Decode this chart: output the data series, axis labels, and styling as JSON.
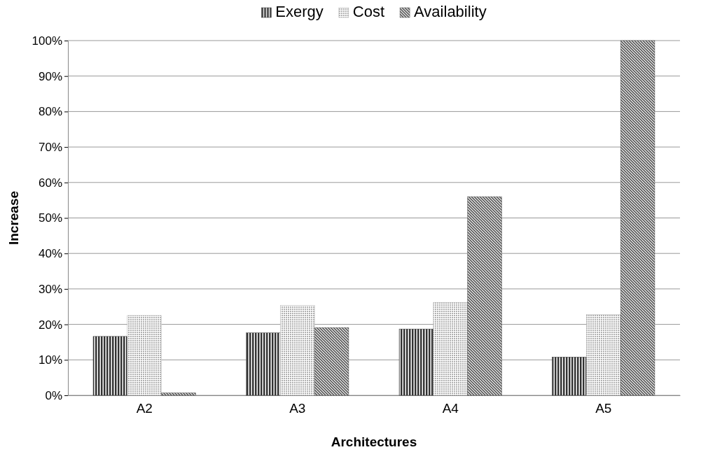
{
  "chart_data": {
    "type": "bar",
    "xlabel": "Architectures",
    "ylabel": "Increase",
    "categories": [
      "A2",
      "A3",
      "A4",
      "A5"
    ],
    "series": [
      {
        "name": "Exergy",
        "color": "#333333",
        "values": [
          16.6,
          17.6,
          18.7,
          10.8
        ]
      },
      {
        "name": "Cost",
        "color": "#b0b0b0",
        "values": [
          22.5,
          25.3,
          26.2,
          22.8
        ]
      },
      {
        "name": "Availability",
        "color": "#555555",
        "values": [
          0.7,
          19.1,
          56.0,
          100
        ]
      }
    ],
    "ylim": [
      0,
      100
    ],
    "yticks": [
      {
        "value": 0,
        "label": "0%"
      },
      {
        "value": 10,
        "label": "10%"
      },
      {
        "value": 20,
        "label": "20%"
      },
      {
        "value": 30,
        "label": "30%"
      },
      {
        "value": 40,
        "label": "40%"
      },
      {
        "value": 50,
        "label": "50%"
      },
      {
        "value": 60,
        "label": "60%"
      },
      {
        "value": 70,
        "label": "70%"
      },
      {
        "value": 80,
        "label": "80%"
      },
      {
        "value": 90,
        "label": "90%"
      },
      {
        "value": 100,
        "label": "100%"
      }
    ],
    "grid": "y",
    "legend": "top"
  }
}
